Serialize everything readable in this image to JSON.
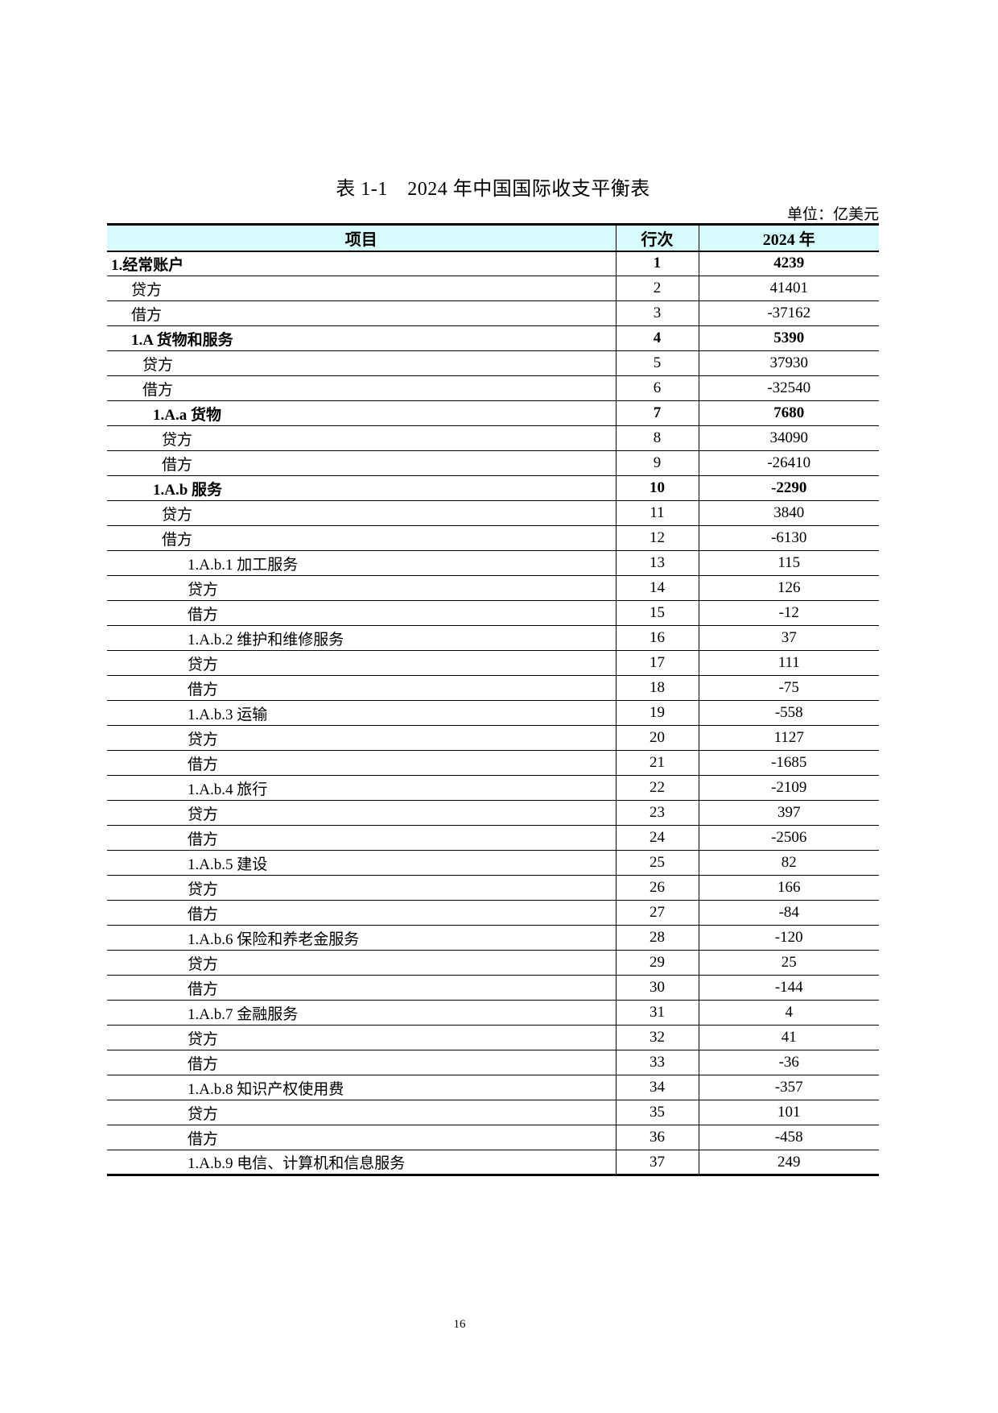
{
  "page": {
    "title": "表 1-1　2024 年中国国际收支平衡表",
    "unit_note": "单位：亿美元",
    "page_number": "16"
  },
  "colors": {
    "header_bg": "#d5fbfb",
    "border": "#000000"
  },
  "table": {
    "columns": [
      {
        "label": "项目"
      },
      {
        "label": "行次"
      },
      {
        "label": "2024 年"
      }
    ],
    "rows": [
      {
        "item": "1.经常账户",
        "line": "1",
        "value": "4239",
        "indent": 0,
        "bold": true
      },
      {
        "item": "贷方",
        "line": "2",
        "value": "41401",
        "indent": 1,
        "bold": false
      },
      {
        "item": "借方",
        "line": "3",
        "value": "-37162",
        "indent": 1,
        "bold": false
      },
      {
        "item": "1.A 货物和服务",
        "line": "4",
        "value": "5390",
        "indent": 1,
        "bold": true
      },
      {
        "item": "贷方",
        "line": "5",
        "value": "37930",
        "indent": 2,
        "bold": false
      },
      {
        "item": "借方",
        "line": "6",
        "value": "-32540",
        "indent": 2,
        "bold": false
      },
      {
        "item": "1.A.a 货物",
        "line": "7",
        "value": "7680",
        "indent": 3,
        "bold": true
      },
      {
        "item": "贷方",
        "line": "8",
        "value": "34090",
        "indent": 4,
        "bold": false
      },
      {
        "item": "借方",
        "line": "9",
        "value": "-26410",
        "indent": 4,
        "bold": false
      },
      {
        "item": "1.A.b 服务",
        "line": "10",
        "value": "-2290",
        "indent": 3,
        "bold": true
      },
      {
        "item": "贷方",
        "line": "11",
        "value": "3840",
        "indent": 4,
        "bold": false
      },
      {
        "item": "借方",
        "line": "12",
        "value": "-6130",
        "indent": 4,
        "bold": false
      },
      {
        "item": "1.A.b.1 加工服务",
        "line": "13",
        "value": "115",
        "indent": 5,
        "bold": false
      },
      {
        "item": "贷方",
        "line": "14",
        "value": "126",
        "indent": 5,
        "bold": false
      },
      {
        "item": "借方",
        "line": "15",
        "value": "-12",
        "indent": 5,
        "bold": false
      },
      {
        "item": "1.A.b.2 维护和维修服务",
        "line": "16",
        "value": "37",
        "indent": 5,
        "bold": false
      },
      {
        "item": "贷方",
        "line": "17",
        "value": "111",
        "indent": 5,
        "bold": false
      },
      {
        "item": "借方",
        "line": "18",
        "value": "-75",
        "indent": 5,
        "bold": false
      },
      {
        "item": "1.A.b.3 运输",
        "line": "19",
        "value": "-558",
        "indent": 5,
        "bold": false
      },
      {
        "item": "贷方",
        "line": "20",
        "value": "1127",
        "indent": 5,
        "bold": false
      },
      {
        "item": "借方",
        "line": "21",
        "value": "-1685",
        "indent": 5,
        "bold": false
      },
      {
        "item": "1.A.b.4 旅行",
        "line": "22",
        "value": "-2109",
        "indent": 5,
        "bold": false
      },
      {
        "item": "贷方",
        "line": "23",
        "value": "397",
        "indent": 5,
        "bold": false
      },
      {
        "item": "借方",
        "line": "24",
        "value": "-2506",
        "indent": 5,
        "bold": false
      },
      {
        "item": "1.A.b.5 建设",
        "line": "25",
        "value": "82",
        "indent": 5,
        "bold": false
      },
      {
        "item": "贷方",
        "line": "26",
        "value": "166",
        "indent": 5,
        "bold": false
      },
      {
        "item": "借方",
        "line": "27",
        "value": "-84",
        "indent": 5,
        "bold": false
      },
      {
        "item": "1.A.b.6 保险和养老金服务",
        "line": "28",
        "value": "-120",
        "indent": 5,
        "bold": false
      },
      {
        "item": "贷方",
        "line": "29",
        "value": "25",
        "indent": 5,
        "bold": false
      },
      {
        "item": "借方",
        "line": "30",
        "value": "-144",
        "indent": 5,
        "bold": false
      },
      {
        "item": "1.A.b.7 金融服务",
        "line": "31",
        "value": "4",
        "indent": 5,
        "bold": false
      },
      {
        "item": "贷方",
        "line": "32",
        "value": "41",
        "indent": 5,
        "bold": false
      },
      {
        "item": "借方",
        "line": "33",
        "value": "-36",
        "indent": 5,
        "bold": false
      },
      {
        "item": "1.A.b.8 知识产权使用费",
        "line": "34",
        "value": "-357",
        "indent": 5,
        "bold": false
      },
      {
        "item": "贷方",
        "line": "35",
        "value": "101",
        "indent": 5,
        "bold": false
      },
      {
        "item": "借方",
        "line": "36",
        "value": "-458",
        "indent": 5,
        "bold": false
      },
      {
        "item": "1.A.b.9 电信、计算机和信息服务",
        "line": "37",
        "value": "249",
        "indent": 5,
        "bold": false
      }
    ]
  }
}
